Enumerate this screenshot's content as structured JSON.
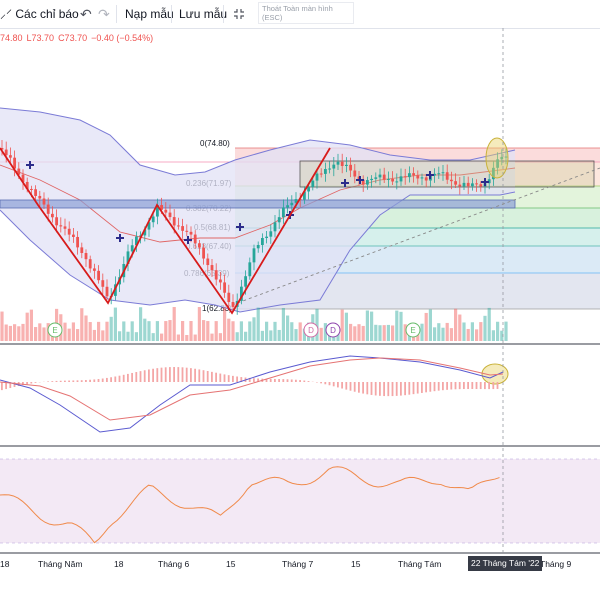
{
  "toolbar": {
    "indicators_label": "Các chỉ báo",
    "load_template_label": "Nạp mẫu",
    "save_template_label": "Lưu mẫu",
    "tooltip_text": "Thoát Toàn màn hình (ESC)"
  },
  "ohlc": {
    "open": "74.80",
    "low": "L73.70",
    "close": "C73.70",
    "change": "−0.40 (−0.54%)"
  },
  "fib_levels": [
    {
      "label": "0(74.80)",
      "value": 74.8
    },
    {
      "label": "0.236(71.97)",
      "value": 71.97
    },
    {
      "label": "0.382(70.22)",
      "value": 70.22
    },
    {
      "label": "0.5(68.81)",
      "value": 68.81
    },
    {
      "label": "0.618(67.40)",
      "value": 67.4
    },
    {
      "label": "0.786(65.39)",
      "value": 65.39
    },
    {
      "label": "1(62.83)",
      "value": 62.83
    }
  ],
  "time_axis": {
    "labels": [
      "18",
      "Tháng Năm",
      "18",
      "Tháng 6",
      "15",
      "Tháng 7",
      "15",
      "Tháng Tám",
      "Tháng 9"
    ],
    "highlighted": "22 Tháng Tám '22"
  },
  "event_markers": [
    "E",
    "D",
    "D",
    "E"
  ],
  "colors": {
    "up": "#26a69a",
    "down": "#ef5350",
    "bollinger": "#7b7bd6",
    "bollinger_fill": "#e2e2f6",
    "zigzag": "#d81b1b",
    "rsi_line": "#f08a4b",
    "macd_line": "#5a5ad0",
    "signal_line": "#e57373",
    "highlight_circle": "#e8d36a"
  }
}
